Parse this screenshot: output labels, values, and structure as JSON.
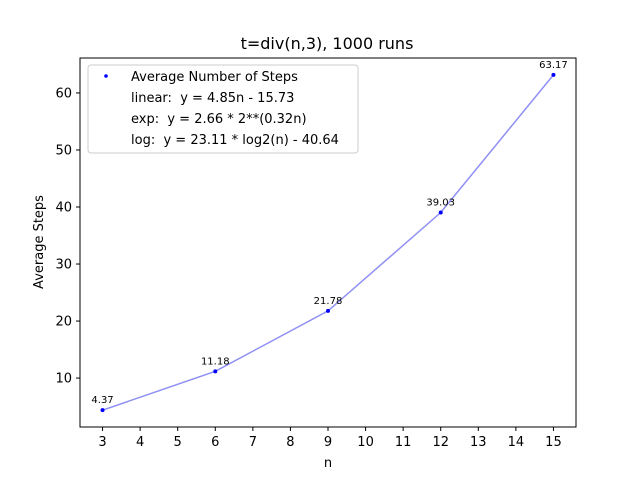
{
  "chart_data": {
    "type": "scatter",
    "title": "t=div(n,3), 1000 runs",
    "xlabel": "n",
    "ylabel": "Average Steps",
    "xlim": [
      2.4,
      15.6
    ],
    "ylim": [
      1.42,
      66.13
    ],
    "xticks": [
      3,
      4,
      5,
      6,
      7,
      8,
      9,
      10,
      11,
      12,
      13,
      14,
      15
    ],
    "yticks": [
      10,
      20,
      30,
      40,
      50,
      60
    ],
    "grid": false,
    "legend_position": "upper-left",
    "series": [
      {
        "name": "Average Number of Steps",
        "x": [
          3,
          6,
          9,
          12,
          15
        ],
        "y": [
          4.37,
          11.18,
          21.78,
          39.03,
          63.17
        ],
        "labels": [
          "4.37",
          "11.18",
          "21.78",
          "39.03",
          "63.17"
        ],
        "color": "#0000ff",
        "line_color": "#8f8ff5"
      }
    ],
    "legend_entries": [
      "Average Number of Steps",
      "linear:  y = 4.85n - 15.73",
      "exp:  y = 2.66 * 2**(0.32n)",
      "log:  y = 23.11 * log2(n) - 40.64"
    ]
  }
}
